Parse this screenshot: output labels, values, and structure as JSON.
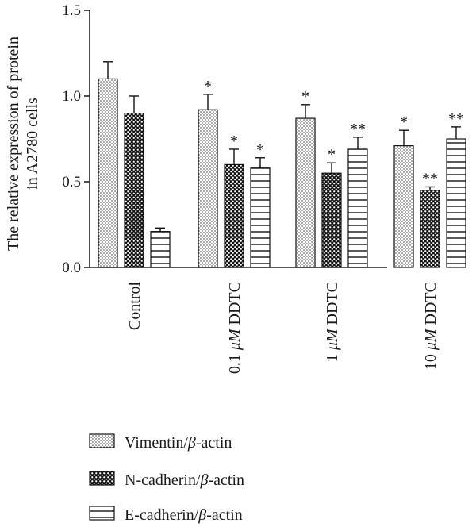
{
  "chart_data": {
    "type": "bar",
    "ylabel_lines": [
      "The relative expression of protein",
      "in A2780 cells"
    ],
    "ylim": [
      0,
      1.5
    ],
    "yticks": [
      "0.0",
      "0.5",
      "1.0",
      "1.5"
    ],
    "categories": [
      "Control",
      "0.1 μM DDTC",
      "1 μM DDTC",
      "10 μM DDTC"
    ],
    "categories_rich": [
      [
        {
          "t": "Control",
          "i": false
        }
      ],
      [
        {
          "t": "0.1 ",
          "i": false
        },
        {
          "t": "μM",
          "i": true
        },
        {
          "t": " DDTC",
          "i": false
        }
      ],
      [
        {
          "t": "1 ",
          "i": false
        },
        {
          "t": "μM",
          "i": true
        },
        {
          "t": " DDTC",
          "i": false
        }
      ],
      [
        {
          "t": "10 ",
          "i": false
        },
        {
          "t": "μM",
          "i": true
        },
        {
          "t": " DDTC",
          "i": false
        }
      ]
    ],
    "series": [
      {
        "name": "Vimentin/β-actin",
        "name_rich": [
          {
            "t": "Vimentin/",
            "i": false
          },
          {
            "t": "β",
            "i": true
          },
          {
            "t": "-actin",
            "i": false
          }
        ],
        "pattern": "dots",
        "values": [
          1.1,
          0.92,
          0.87,
          0.71
        ],
        "errors": [
          0.1,
          0.09,
          0.08,
          0.09
        ],
        "significance": [
          "",
          "*",
          "*",
          "*"
        ]
      },
      {
        "name": "N-cadherin/β-actin",
        "name_rich": [
          {
            "t": "N-cadherin/",
            "i": false
          },
          {
            "t": "β",
            "i": true
          },
          {
            "t": "-actin",
            "i": false
          }
        ],
        "pattern": "checker",
        "values": [
          0.9,
          0.6,
          0.55,
          0.45
        ],
        "errors": [
          0.1,
          0.09,
          0.06,
          0.02
        ],
        "significance": [
          "",
          "*",
          "*",
          "**"
        ]
      },
      {
        "name": "E-cadherin/β-actin",
        "name_rich": [
          {
            "t": "E-cadherin/",
            "i": false
          },
          {
            "t": "β",
            "i": true
          },
          {
            "t": "-actin",
            "i": false
          }
        ],
        "pattern": "hlines",
        "values": [
          0.21,
          0.58,
          0.69,
          0.75
        ],
        "errors": [
          0.02,
          0.06,
          0.07,
          0.07
        ],
        "significance": [
          "",
          "*",
          "**",
          "**"
        ]
      }
    ],
    "legend_position": "bottom-left"
  }
}
